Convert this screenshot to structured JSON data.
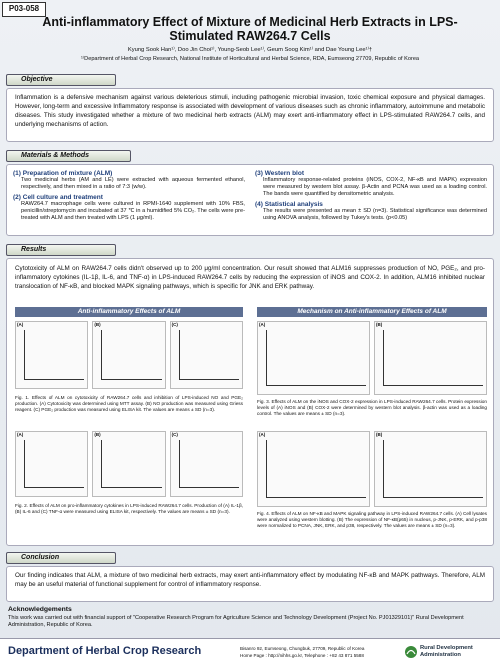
{
  "poster_id": "P03-058",
  "header": {
    "title": "Anti-inflammatory Effect of Mixture of Medicinal Herb Extracts in LPS-Stimulated RAW264.7 Cells",
    "authors": "Kyung Sook Han¹⁾, Doo Jin Choi¹⁾, Young-Seob Lee¹⁾, Geum Soog Kim¹⁾ and Dae Young Lee¹⁾†",
    "affiliation": "¹⁾Department of Herbal Crop Research, National Institute of Horticultural and Herbal Science, RDA, Eumseong 27709, Republic of Korea"
  },
  "objective": {
    "heading": "Objective",
    "text": "Inflammation is a defensive mechanism against various deleterious stimuli, including pathogenic microbial invasion, toxic chemical exposure and physical damages. However, long-term and excessive Inflammatory response is associated with development of various diseases such as chronic inflammatory, autoimmune and metabolic diseases. This study investigated whether a mixture of two medicinal herb extracts (ALM) may exert anti-inflammatory effect in LPS-stimulated RAW264.7 cells, and underlying mechanisms of action."
  },
  "methods": {
    "heading": "Materials & Methods",
    "items": [
      {
        "heading": "(1) Preparation of mixture (ALM)",
        "text": "Two medicinal herbs (AM and LE) were extracted with aqueous fermented ethanol, respectively, and then mixed in a ratio of 7:3 (w/w)."
      },
      {
        "heading": "(2) Cell culture and treatment",
        "text": "RAW264.7 macrophage cells were cultured in RPMI-1640 supplement with 10% FBS, penicillin/streptomycin and incubated at 37 ℃ in a humidified 5% CO₂. The cells were pre-treated with ALM and then treated with LPS (1 μg/ml)."
      },
      {
        "heading": "(3) Western blot",
        "text": "Inflammatory response-related proteins (iNOS, COX-2, NF-κB and MAPK) expression were measured by western blot assay. β-Actin and PCNA was used as a loading control. The bands were quantified by densitometric analysis."
      },
      {
        "heading": "(4) Statistical analysis",
        "text": "The results were presented as mean ± SD (n=3). Statistical significance was determined using ANOVA analysis, followed by Tukey's tests. (p<0.05)"
      }
    ]
  },
  "results": {
    "heading": "Results",
    "intro": "Cytotoxicity of ALM on RAW264.7 cells didn't observed up to 200 μg/ml concentration. Our result showed that ALM16 suppresses production of NO, PGE₂, and pro-inflammatory cytokines (IL-1β, IL-6, and TNF-α) in LPS-induced RAW264.7 cells by reducing the expression of iNOS and COX-2. In addition, ALM16 inhibited nuclear translocation of NF-κB, and blocked MAPK signaling pathways, which is specific for JNK and ERK pathway.",
    "left_heading": "Anti-inflammatory Effects of ALM",
    "right_heading": "Mechanism on Anti-inflammatory Effects of ALM",
    "figures": [
      {
        "panels": [
          "(A)",
          "(B)",
          "(C)"
        ],
        "caption": "Fig. 1. Effects of ALM on cytotoxicity of RAW264.7 cells and inhibition of LPS-induced NO and PGE₂ production. (A) Cytotoxicity was determined using MTT assay. (B) NO production was measured using Griess reagent. (C) PGE₂ production was measured using ELISA kit. The values are means ± SD (n=3)."
      },
      {
        "panels": [
          "(A)",
          "(B)",
          "(C)"
        ],
        "caption": "Fig. 2. Effects of ALM on pro-inflammatory cytokines in LPS-induced RAW264.7 cells. Production of (A) IL-1β, (B) IL-6 and (C) TNF-α were measured using ELISA kit, respectively. The values are means ± SD (n=3)."
      },
      {
        "panels": [
          "(A)",
          "(B)"
        ],
        "caption": "Fig. 3. Effects of ALM on the iNOS and COX-2 expression in LPS-induced RAW264.7 cells. Protein expression levels of (A) iNOS and (B) COX-2 were determined by western blot analysis. β-actin was used as a loading control. The values are means ± SD (n=3)."
      },
      {
        "panels": [
          "(A)",
          "(B)"
        ],
        "caption": "Fig. 4. Effects of ALM on NF-κB and MAPK signaling pathway in LPS-induced RAW264.7 cells. (A) Cell lysates were analyzed using western blotting. (B) The expression of NF-κB(p65) in nucleus, p-JNK, p-ERK, and p-p38 were normalized to PCNA, JNK, ERK, and p38, respectively. The values are means ± SD (n=3)."
      }
    ]
  },
  "conclusion": {
    "heading": "Conclusion",
    "text": "Our finding indicates that ALM, a mixture of two medicinal herb extracts, may exert anti-inflammatory effect by modulating NF-κB and MAPK pathways. Therefore, ALM may be an useful material of functional supplement for control of inflammatory response."
  },
  "acknowledgements": {
    "heading": "Acknowledgements",
    "text": "This work was carried out with financial support of \"Cooperative Research Program for Agriculture Science and Technology Development (Project No. PJ01329101)\" Rural Development Administration, Republic of Korea."
  },
  "footer": {
    "department": "Department of Herbal Crop Research",
    "address": "Bisanro 92, Eumseong, Chungbuk, 27709, Republic of Korea",
    "contact": "Home Page : http://nihhs.go.kr, Telephone : +82 43 871 5588",
    "organization": "Rural Development Administration"
  }
}
